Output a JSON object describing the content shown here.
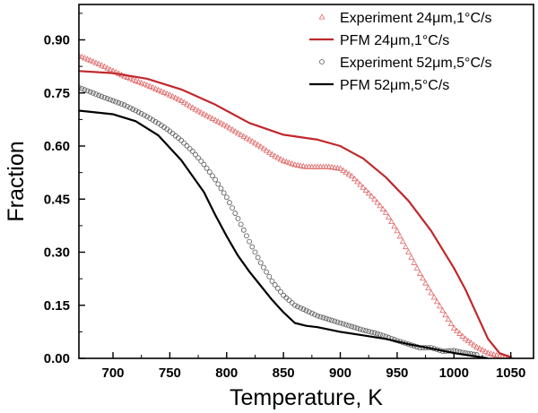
{
  "chart_data": {
    "type": "scatter",
    "xlabel": "Temperature, K",
    "ylabel": "Fraction",
    "xlim": [
      670,
      1070
    ],
    "ylim": [
      0.0,
      1.0
    ],
    "xticks": [
      700,
      750,
      800,
      850,
      900,
      950,
      1000,
      1050
    ],
    "yticks": [
      0.0,
      0.15,
      0.3,
      0.45,
      0.6,
      0.75,
      0.9
    ],
    "ytick_labels": [
      "0.00",
      "0.15",
      "0.30",
      "0.45",
      "0.60",
      "0.75",
      "0.90"
    ],
    "grid": false,
    "legend_position": "top-right",
    "series": [
      {
        "name": "Experiment 24μm,1°C/s",
        "kind": "markers",
        "marker": "triangle",
        "color": "#e06666",
        "x": [
          670,
          680,
          690,
          700,
          710,
          720,
          730,
          740,
          750,
          760,
          770,
          780,
          790,
          800,
          810,
          820,
          830,
          840,
          850,
          860,
          870,
          880,
          890,
          900,
          910,
          920,
          930,
          940,
          950,
          960,
          970,
          980,
          990,
          1000,
          1010,
          1020,
          1030,
          1040,
          1050
        ],
        "y": [
          0.855,
          0.842,
          0.828,
          0.812,
          0.797,
          0.784,
          0.772,
          0.758,
          0.744,
          0.728,
          0.708,
          0.69,
          0.673,
          0.656,
          0.636,
          0.618,
          0.598,
          0.576,
          0.558,
          0.547,
          0.541,
          0.541,
          0.541,
          0.536,
          0.515,
          0.483,
          0.45,
          0.412,
          0.36,
          0.3,
          0.24,
          0.185,
          0.135,
          0.085,
          0.055,
          0.032,
          0.015,
          0.006,
          0.002
        ]
      },
      {
        "name": "PFM 24μm,1°C/s",
        "kind": "line",
        "color": "#c0282b",
        "x": [
          670,
          700,
          730,
          760,
          790,
          820,
          850,
          880,
          900,
          920,
          940,
          960,
          980,
          1000,
          1010,
          1020,
          1030,
          1040,
          1050
        ],
        "y": [
          0.812,
          0.806,
          0.79,
          0.76,
          0.717,
          0.665,
          0.632,
          0.618,
          0.6,
          0.565,
          0.512,
          0.445,
          0.36,
          0.255,
          0.195,
          0.125,
          0.055,
          0.015,
          0.003
        ]
      },
      {
        "name": "Experiment 52μm,5°C/s",
        "kind": "markers",
        "marker": "circle",
        "color": "#595959",
        "x": [
          670,
          680,
          690,
          700,
          710,
          720,
          730,
          740,
          750,
          760,
          770,
          780,
          790,
          800,
          810,
          820,
          830,
          840,
          850,
          860,
          870,
          880,
          890,
          900,
          910,
          920,
          930,
          940,
          950,
          960,
          970,
          980,
          990,
          1000,
          1010,
          1020
        ],
        "y": [
          0.765,
          0.753,
          0.74,
          0.728,
          0.716,
          0.7,
          0.683,
          0.664,
          0.642,
          0.616,
          0.585,
          0.548,
          0.505,
          0.455,
          0.395,
          0.33,
          0.27,
          0.218,
          0.178,
          0.15,
          0.135,
          0.12,
          0.11,
          0.1,
          0.09,
          0.08,
          0.072,
          0.062,
          0.05,
          0.04,
          0.03,
          0.03,
          0.02,
          0.022,
          0.015,
          0.01
        ]
      },
      {
        "name": "PFM 52μm,5°C/s",
        "kind": "line",
        "color": "#000000",
        "x": [
          670,
          700,
          720,
          740,
          760,
          780,
          790,
          800,
          810,
          820,
          830,
          840,
          850,
          860,
          870,
          880,
          900,
          920,
          940,
          960,
          980,
          1000,
          1020,
          1030
        ],
        "y": [
          0.7,
          0.69,
          0.67,
          0.63,
          0.56,
          0.47,
          0.405,
          0.345,
          0.29,
          0.245,
          0.205,
          0.165,
          0.13,
          0.1,
          0.092,
          0.088,
          0.075,
          0.065,
          0.055,
          0.04,
          0.028,
          0.015,
          0.005,
          0.0
        ]
      }
    ]
  }
}
